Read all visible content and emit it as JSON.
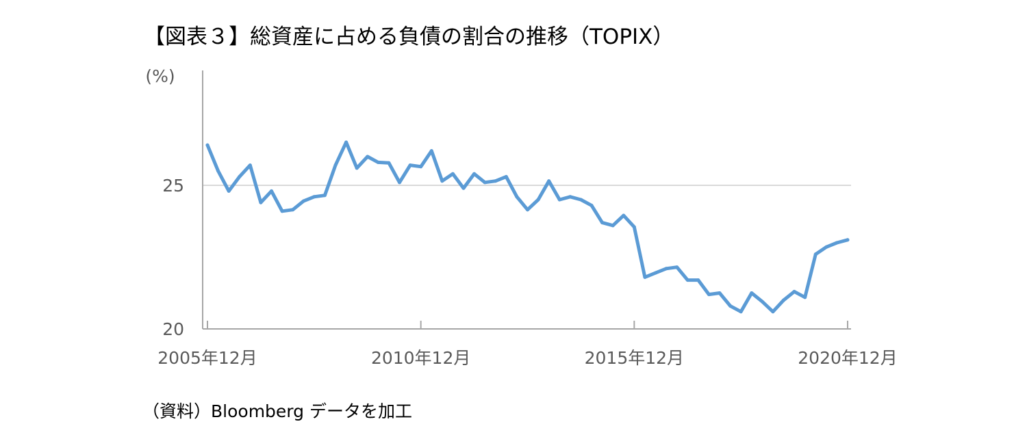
{
  "title": "【図表３】総資産に占める負債の割合の推移（TOPIX）",
  "source": "（資料）Bloomberg データを加工",
  "chart_data": {
    "type": "line",
    "title": "【図表３】総資産に占める負債の割合の推移（TOPIX）",
    "ylabel": "(%)",
    "ylim": [
      20,
      29
    ],
    "yticks": [
      20,
      25
    ],
    "gridlines": [
      25
    ],
    "x_tick_labels": [
      "2005年12月",
      "2010年12月",
      "2015年12月",
      "2020年12月"
    ],
    "x_tick_indices": [
      0,
      20,
      40,
      60
    ],
    "line_color": "#5b9bd5",
    "series": [
      {
        "values": [
          26.4,
          25.5,
          24.8,
          25.3,
          25.7,
          24.4,
          24.8,
          24.1,
          24.15,
          24.45,
          24.6,
          24.65,
          25.7,
          26.5,
          25.6,
          26.0,
          25.8,
          25.78,
          25.1,
          25.7,
          25.65,
          26.2,
          25.15,
          25.4,
          24.9,
          25.4,
          25.1,
          25.15,
          25.3,
          24.6,
          24.15,
          24.5,
          25.15,
          24.5,
          24.6,
          24.5,
          24.3,
          23.7,
          23.6,
          23.95,
          23.55,
          21.8,
          21.95,
          22.1,
          22.15,
          21.7,
          21.7,
          21.2,
          21.25,
          20.8,
          20.6,
          21.25,
          20.95,
          20.6,
          21.0,
          21.3,
          21.1,
          22.6,
          22.85,
          23.0,
          23.1
        ]
      }
    ]
  }
}
